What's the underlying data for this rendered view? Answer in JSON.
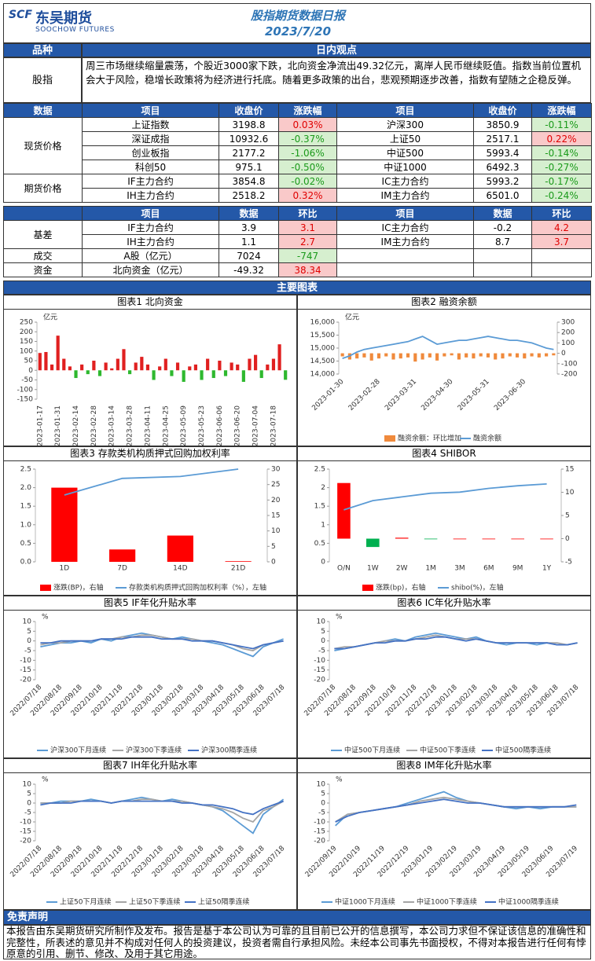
{
  "header": {
    "logo_mark": "SCF",
    "brand": "东吴期货",
    "brand_en": "SOOCHOW FUTURES",
    "title": "股指期货数据日报",
    "date": "2023/7/20"
  },
  "view": {
    "col1": "品种",
    "col2": "日内观点",
    "label": "股指",
    "text": "周三市场继续缩量震荡，个股近3000家下跌，北向资金净流出49.32亿元，离岸人民币继续贬值。指数当前位置机会大于风险，稳增长政策将为经济进行托底。随着更多政策的出台，悲观预期逐步改善，指数有望随之企稳反弹。"
  },
  "quotes": {
    "header": [
      "数据",
      "项目",
      "收盘价",
      "涨跌幅",
      "项目",
      "收盘价",
      "涨跌幅"
    ],
    "groups": [
      {
        "label": "现货价格",
        "rows": [
          [
            "上证指数",
            "3198.8",
            "0.03%",
            "沪深300",
            "3850.9",
            "-0.11%"
          ],
          [
            "深证成指",
            "10932.6",
            "-0.37%",
            "上证50",
            "2517.1",
            "0.22%"
          ],
          [
            "创业板指",
            "2177.2",
            "-1.06%",
            "中证500",
            "5993.4",
            "-0.14%"
          ],
          [
            "科创50",
            "975.1",
            "-0.50%",
            "中证1000",
            "6492.3",
            "-0.27%"
          ]
        ]
      },
      {
        "label": "期货价格",
        "rows": [
          [
            "IF主力合约",
            "3854.8",
            "-0.02%",
            "IC主力合约",
            "5993.2",
            "-0.17%"
          ],
          [
            "IH主力合约",
            "2518.2",
            "0.32%",
            "IM主力合约",
            "6501.0",
            "-0.24%"
          ]
        ]
      }
    ]
  },
  "basis": {
    "header": [
      "项目",
      "数据",
      "环比",
      "项目",
      "数据",
      "环比"
    ],
    "groups": [
      {
        "label": "基差",
        "rows": [
          [
            "IF主力合约",
            "3.9",
            "3.1",
            "IC主力合约",
            "-0.2",
            "4.2"
          ],
          [
            "IH主力合约",
            "1.1",
            "2.7",
            "IM主力合约",
            "8.7",
            "3.7"
          ]
        ]
      },
      {
        "label": "成交",
        "rows": [
          [
            "A股（亿元）",
            "7024",
            "-747"
          ]
        ]
      },
      {
        "label": "资金",
        "rows": [
          [
            "北向资金（亿元）",
            "-49.32",
            "38.34"
          ]
        ]
      }
    ]
  },
  "charts_heading": "主要图表",
  "chart_data": [
    {
      "type": "bar",
      "title": "图表1  北向资金",
      "unit": "亿元",
      "x_rotation": -90,
      "positive_color": "#e02020",
      "negative_color": "#2eb82e",
      "categories": [
        "2023-01-17",
        null,
        null,
        "2023-01-31",
        null,
        null,
        "2023-02-14",
        null,
        null,
        "2023-02-28",
        null,
        null,
        "2023-03-14",
        null,
        null,
        "2023-03-28",
        null,
        null,
        "2023-04-11",
        null,
        null,
        "2023-04-25",
        null,
        null,
        "2023-05-09",
        null,
        null,
        "2023-05-23",
        null,
        null,
        "2023-06-06",
        null,
        null,
        "2023-06-20",
        null,
        null,
        "2023-07-04",
        null,
        null,
        "2023-07-18",
        null,
        null
      ],
      "values": [
        90,
        95,
        30,
        180,
        60,
        20,
        -40,
        30,
        -20,
        50,
        -30,
        40,
        10,
        60,
        110,
        -20,
        40,
        70,
        30,
        -50,
        20,
        60,
        -30,
        40,
        -60,
        20,
        30,
        -50,
        60,
        -40,
        50,
        -30,
        40,
        30,
        -60,
        60,
        80,
        -40,
        30,
        60,
        135,
        -49.32
      ],
      "ylim": [
        -150,
        250
      ],
      "yticks": [
        -150,
        -100,
        -50,
        0,
        50,
        100,
        150,
        200,
        250
      ]
    },
    {
      "type": "combo",
      "title": "图表2  融资余额",
      "unit": "亿元",
      "x_rotation": -45,
      "categories": [
        "2023-01-30",
        null,
        null,
        null,
        null,
        "2023-02-28",
        null,
        null,
        null,
        null,
        "2023-03-31",
        null,
        null,
        null,
        null,
        "2023-04-30",
        null,
        null,
        null,
        null,
        "2023-05-31",
        null,
        null,
        null,
        null,
        "2023-06-30",
        null,
        null,
        null,
        null
      ],
      "series": [
        {
          "name": "融资余额：环比增加",
          "type": "bar",
          "axis": "y2",
          "color": "#f08a3c",
          "values": [
            -30,
            -60,
            -50,
            -40,
            -70,
            -50,
            -30,
            -60,
            -50,
            -40,
            -80,
            -60,
            -40,
            -70,
            -30,
            -20,
            -60,
            -40,
            -50,
            -30,
            -40,
            -60,
            -50,
            -30,
            -40,
            -50,
            -30,
            -40,
            -30,
            -20
          ]
        },
        {
          "name": "融资余额",
          "type": "line",
          "color": "#5b9bd5",
          "values": [
            14600,
            14700,
            14850,
            14950,
            15000,
            15050,
            15100,
            15150,
            15200,
            15250,
            15350,
            15450,
            15300,
            15150,
            15200,
            15250,
            15300,
            15300,
            15350,
            15400,
            15450,
            15400,
            15350,
            15300,
            15300,
            15250,
            15200,
            15100,
            15000,
            14950
          ]
        }
      ],
      "ylim": [
        14000,
        16000
      ],
      "yticks": [
        {
          "value": 14000,
          "label": "14,000"
        },
        {
          "value": 14500,
          "label": "14,500"
        },
        {
          "value": 15000,
          "label": "15,000"
        },
        {
          "value": 15500,
          "label": "15,500"
        },
        {
          "value": 16000,
          "label": "16,000"
        }
      ],
      "y2lim": [
        -200,
        300
      ],
      "y2ticks": [
        -200,
        -100,
        0,
        100,
        200,
        300
      ]
    },
    {
      "type": "combo",
      "title": "图表3  存款类机构质押式回购加权利率",
      "x_rotation": 0,
      "categories": [
        "1D",
        "7D",
        "14D",
        "21D"
      ],
      "series": [
        {
          "name": "涨跌(BP)，右轴",
          "type": "bar",
          "axis": "y2",
          "color": "#ff0000",
          "values": [
            24,
            4,
            8.5,
            0.2
          ]
        },
        {
          "name": "存款类机构质押式回购加权利率（%），左轴",
          "type": "line",
          "color": "#5b9bd5",
          "values": [
            1.8,
            2.25,
            2.3,
            2.5
          ]
        }
      ],
      "ylim": [
        0,
        2.5
      ],
      "yticks": [
        {
          "value": 0,
          "label": "0.0"
        },
        0.5,
        {
          "value": 1,
          "label": "1.0"
        },
        1.5,
        {
          "value": 2,
          "label": "2.0"
        },
        2.5
      ],
      "y2lim": [
        0,
        30
      ],
      "y2ticks": [
        0,
        5,
        10,
        15,
        20,
        25,
        30
      ]
    },
    {
      "type": "combo",
      "title": "图表4  SHIBOR",
      "x_rotation": 0,
      "categories": [
        "O/N",
        "1W",
        "2W",
        "1M",
        "3M",
        "6M",
        "9M",
        "1Y"
      ],
      "series": [
        {
          "name": "涨跌(bp)，右轴",
          "type": "bar",
          "axis": "y2",
          "color": "#ff0000",
          "negative_color": "#00b050",
          "values": [
            12,
            -1.8,
            0.2,
            -0.1,
            0,
            0,
            0,
            0
          ]
        },
        {
          "name": "shibo(%)，左轴",
          "type": "line",
          "color": "#5b9bd5",
          "values": [
            1.4,
            1.65,
            1.75,
            1.85,
            1.88,
            1.98,
            2.05,
            2.1
          ]
        }
      ],
      "ylim": [
        0,
        2.5
      ],
      "yticks": [
        0,
        0.5,
        1,
        1.5,
        2,
        2.5
      ],
      "y2lim": [
        -5,
        15
      ],
      "y2ticks": [
        -5,
        0,
        5,
        10,
        15
      ]
    },
    {
      "type": "line",
      "title": "图表5  IF年化升贴水率",
      "unit": "%",
      "x_rotation": -45,
      "categories": [
        "2022/07/18",
        null,
        "2022/08/18",
        null,
        "2022/09/18",
        null,
        "2022/10/18",
        null,
        "2022/11/18",
        null,
        "2022/12/18",
        null,
        "2023/01/18",
        null,
        "2023/02/18",
        null,
        "2023/03/18",
        null,
        "2023/04/18",
        null,
        "2023/05/18",
        null,
        "2023/06/18",
        null,
        "2023/07/18"
      ],
      "series": [
        {
          "name": "沪深300下月连续",
          "type": "line",
          "color": "#5b9bd5",
          "values": [
            -3,
            -2,
            -1,
            -1,
            0,
            -1,
            1,
            0,
            2,
            3,
            4,
            3,
            2,
            1,
            2,
            1,
            0,
            -1,
            -2,
            -4,
            -6,
            -8,
            -3,
            -1,
            1
          ]
        },
        {
          "name": "沪深300下季连续",
          "type": "line",
          "color": "#a5a5a5",
          "values": [
            -2,
            -1,
            -1,
            0,
            0,
            0,
            1,
            1,
            2,
            2,
            3,
            3,
            2,
            1,
            1,
            1,
            0,
            0,
            -1,
            -2,
            -4,
            -5,
            -2,
            -1,
            0
          ]
        },
        {
          "name": "沪深300隔季连续",
          "type": "line",
          "color": "#4472c4",
          "values": [
            -1,
            -1,
            0,
            0,
            0,
            0,
            1,
            1,
            1,
            2,
            2,
            2,
            1,
            1,
            1,
            0,
            0,
            0,
            -1,
            -2,
            -3,
            -4,
            -2,
            -1,
            0
          ]
        }
      ],
      "ylim": [
        -20,
        10
      ],
      "yticks": [
        -20,
        -15,
        -10,
        -5,
        0,
        5,
        10
      ]
    },
    {
      "type": "line",
      "title": "图表6  IC年化升贴水率",
      "unit": "%",
      "x_rotation": -45,
      "categories": [
        "2022/07/18",
        null,
        "2022/08/18",
        null,
        "2022/09/18",
        null,
        "2022/10/18",
        null,
        "2022/11/18",
        null,
        "2022/12/18",
        null,
        "2023/01/18",
        null,
        "2023/02/18",
        null,
        "2023/03/18",
        null,
        "2023/04/18",
        null,
        "2023/05/18",
        null,
        "2023/06/18",
        null,
        "2023/07/18"
      ],
      "series": [
        {
          "name": "中证500下月连续",
          "type": "line",
          "color": "#5b9bd5",
          "values": [
            -5,
            -4,
            -3,
            -2,
            -1,
            0,
            1,
            0,
            2,
            3,
            4,
            3,
            2,
            1,
            2,
            0,
            -1,
            -2,
            -1,
            -1,
            -2,
            -1,
            -2,
            -2,
            -1
          ]
        },
        {
          "name": "中证500下季连续",
          "type": "line",
          "color": "#a5a5a5",
          "values": [
            -4,
            -3,
            -3,
            -2,
            -1,
            0,
            0,
            0,
            1,
            2,
            3,
            2,
            1,
            1,
            1,
            0,
            -1,
            -1,
            -1,
            -1,
            -1,
            -1,
            -1,
            -2,
            -1
          ]
        },
        {
          "name": "中证500隔季连续",
          "type": "line",
          "color": "#4472c4",
          "values": [
            -4,
            -4,
            -3,
            -2,
            -1,
            -1,
            0,
            0,
            1,
            1,
            2,
            2,
            1,
            0,
            1,
            0,
            -1,
            -1,
            -1,
            -1,
            -1,
            -1,
            -2,
            -2,
            -1
          ]
        }
      ],
      "ylim": [
        -20,
        10
      ],
      "yticks": [
        -20,
        -15,
        -10,
        -5,
        0,
        5,
        10
      ]
    },
    {
      "type": "line",
      "title": "图表7  IH年化升贴水率",
      "unit": "%",
      "x_rotation": -45,
      "categories": [
        "2022/07/18",
        null,
        "2022/08/18",
        null,
        "2022/09/18",
        null,
        "2022/10/18",
        null,
        "2022/11/18",
        null,
        "2022/12/18",
        null,
        "2023/01/18",
        null,
        "2023/02/18",
        null,
        "2023/03/18",
        null,
        "2023/04/18",
        null,
        "2023/05/18",
        null,
        "2023/06/18",
        null,
        "2023/07/18"
      ],
      "series": [
        {
          "name": "上证50下月连续",
          "type": "line",
          "color": "#5b9bd5",
          "values": [
            0,
            0,
            1,
            1,
            1,
            2,
            1,
            0,
            1,
            2,
            3,
            2,
            1,
            2,
            1,
            0,
            -1,
            -2,
            -4,
            -8,
            -12,
            -16,
            -6,
            -2,
            2
          ]
        },
        {
          "name": "上证50下季连续",
          "type": "line",
          "color": "#a5a5a5",
          "values": [
            0,
            0,
            0,
            1,
            1,
            1,
            1,
            0,
            1,
            1,
            2,
            2,
            1,
            1,
            1,
            0,
            -1,
            -2,
            -3,
            -5,
            -8,
            -10,
            -4,
            -2,
            1
          ]
        },
        {
          "name": "上证50隔季连续",
          "type": "line",
          "color": "#4472c4",
          "values": [
            -1,
            0,
            0,
            0,
            1,
            1,
            1,
            0,
            1,
            1,
            1,
            1,
            1,
            1,
            0,
            0,
            -1,
            -1,
            -2,
            -3,
            -5,
            -6,
            -3,
            -1,
            1
          ]
        }
      ],
      "ylim": [
        -20,
        10
      ],
      "yticks": [
        -20,
        -15,
        -10,
        -5,
        0,
        5,
        10
      ]
    },
    {
      "type": "line",
      "title": "图表8  IM年化升贴水率",
      "unit": "%",
      "x_rotation": -45,
      "categories": [
        "2022/09/19",
        null,
        "2022/10/19",
        null,
        "2022/11/19",
        null,
        "2022/12/19",
        null,
        "2023/01/19",
        null,
        "2023/02/19",
        null,
        "2023/03/19",
        null,
        "2023/04/19",
        null,
        "2023/05/19",
        null,
        "2023/06/19",
        null,
        "2023/07/19"
      ],
      "series": [
        {
          "name": "中证1000下月连续",
          "type": "line",
          "color": "#5b9bd5",
          "values": [
            -12,
            -6,
            -5,
            -4,
            -3,
            -2,
            0,
            2,
            4,
            6,
            3,
            1,
            0,
            -1,
            -2,
            -3,
            -2,
            -3,
            -2,
            -2,
            -2
          ]
        },
        {
          "name": "中证1000下季连续",
          "type": "line",
          "color": "#a5a5a5",
          "values": [
            -10,
            -6,
            -5,
            -4,
            -3,
            -2,
            -1,
            1,
            2,
            3,
            2,
            1,
            0,
            -1,
            -2,
            -2,
            -2,
            -2,
            -2,
            -2,
            -2
          ]
        },
        {
          "name": "中证1000隔季连续",
          "type": "line",
          "color": "#4472c4",
          "values": [
            -10,
            -7,
            -5,
            -4,
            -3,
            -2,
            -1,
            0,
            1,
            2,
            1,
            0,
            0,
            -1,
            -2,
            -2,
            -2,
            -2,
            -2,
            -2,
            -1
          ]
        }
      ],
      "ylim": [
        -20,
        10
      ],
      "yticks": [
        -20,
        -15,
        -10,
        -5,
        0,
        5,
        10
      ]
    }
  ],
  "disclaimer": {
    "title": "免责声明",
    "text": "本报告由东吴期货研究所制作及发布。报告是基于本公司认为可靠的且目前已公开的信息撰写，本公司力求但不保证该信息的准确性和完整性，所表述的意见并不构成对任何人的投资建议，投资者需自行承担风险。未经本公司事先书面授权，不得对本报告进行任何有悖原意的引用、删节、修改、及用于其它用途。"
  }
}
